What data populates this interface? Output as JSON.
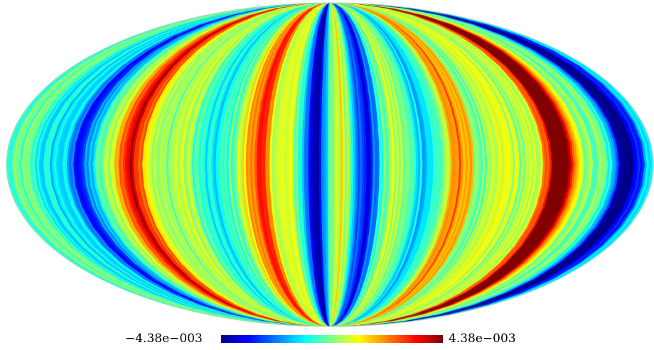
{
  "figure": {
    "projection": "mollweide",
    "colormap": "jet",
    "colorbar": {
      "min_label": "−4.38e−003",
      "max_label": "4.38e−003",
      "min_value": -0.00438,
      "max_value": 0.00438
    },
    "stripe_pattern": {
      "orientation": "meridional",
      "dominant_bands": [
        {
          "longitude_deg": -140,
          "value": -0.0036,
          "color": "blue"
        },
        {
          "longitude_deg": -110,
          "value": 0.0022,
          "color": "orange"
        },
        {
          "longitude_deg": -40,
          "value": 0.004,
          "color": "red"
        },
        {
          "longitude_deg": -8,
          "value": -0.0038,
          "color": "blue"
        },
        {
          "longitude_deg": 20,
          "value": -0.0034,
          "color": "blue"
        },
        {
          "longitude_deg": 75,
          "value": 0.003,
          "color": "orange-red"
        },
        {
          "longitude_deg": 130,
          "value": 0.0041,
          "color": "red"
        },
        {
          "longitude_deg": 165,
          "value": -0.0039,
          "color": "blue"
        }
      ]
    }
  }
}
